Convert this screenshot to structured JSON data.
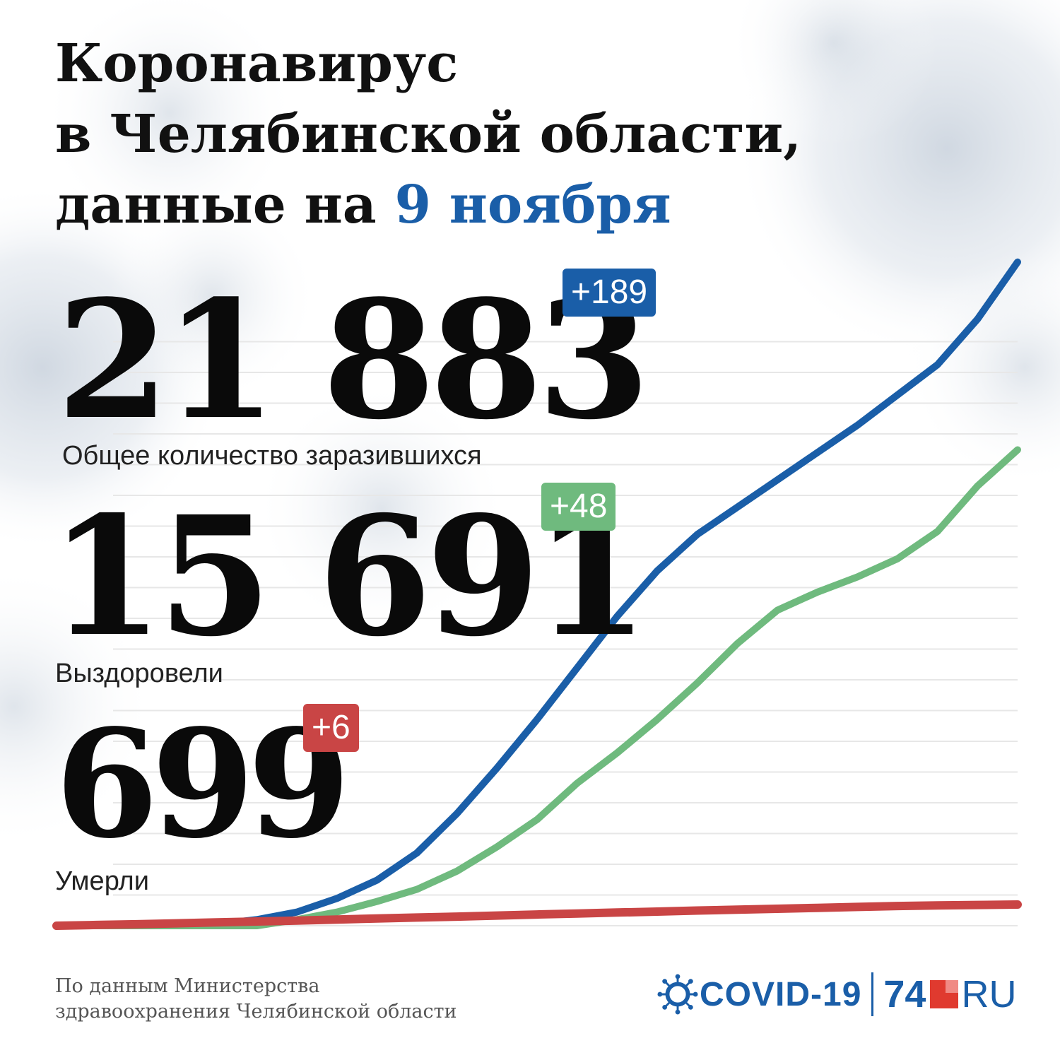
{
  "title": {
    "line1": "Коронавирус",
    "line2": "в Челябинской области,",
    "line3_prefix": "данные на ",
    "line3_date": "9 ноября"
  },
  "stats": {
    "total": {
      "value": "21 883",
      "delta": "+189",
      "label": "Общее количество заразившихся"
    },
    "recovered": {
      "value": "15 691",
      "delta": "+48",
      "label": "Выздоровели"
    },
    "deaths": {
      "value": "699",
      "delta": "+6",
      "label": "Умерли"
    }
  },
  "source": {
    "line1": "По данным Министерства",
    "line2": "здравоохранения Челябинской области"
  },
  "logo": {
    "covid": "COVID-19",
    "number": "74",
    "ru": "RU"
  },
  "colors": {
    "total": "#1a5ea8",
    "recovered": "#6fba7e",
    "deaths": "#c94545",
    "title_accent": "#1a5ea8"
  },
  "chart_data": {
    "type": "line",
    "x": [
      0,
      1,
      2,
      3,
      4,
      5,
      6,
      7,
      8,
      9,
      10,
      11,
      12,
      13,
      14,
      15,
      16,
      17,
      18,
      19,
      20,
      21,
      22,
      23,
      24
    ],
    "ylim": [
      0,
      22600
    ],
    "series": [
      {
        "values": [
          0,
          0,
          0,
          10,
          50,
          200,
          450,
          900,
          1500,
          2400,
          3700,
          5200,
          6800,
          8500,
          10200,
          11700,
          12900,
          13800,
          14700,
          15600,
          16500,
          17500,
          18500,
          20000,
          21883
        ]
      },
      {
        "values": [
          0,
          0,
          0,
          0,
          0,
          0,
          200,
          450,
          800,
          1200,
          1800,
          2600,
          3500,
          4700,
          5700,
          6800,
          8000,
          9300,
          10400,
          11000,
          11500,
          12100,
          13000,
          14500,
          15691
        ]
      },
      {
        "values": [
          0,
          25,
          50,
          80,
          110,
          140,
          170,
          205,
          240,
          270,
          300,
          335,
          370,
          400,
          435,
          465,
          500,
          530,
          560,
          590,
          620,
          650,
          670,
          685,
          699
        ]
      }
    ]
  }
}
